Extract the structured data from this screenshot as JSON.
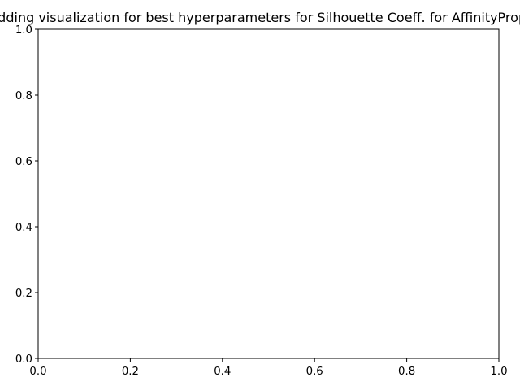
{
  "chart_data": {
    "type": "scatter",
    "title": "Embedding visualization for best hyperparameters for Silhouette Coeff. for AffinityPropagation",
    "xlabel": "",
    "ylabel": "",
    "xlim": [
      0.0,
      1.0
    ],
    "ylim": [
      0.0,
      1.0
    ],
    "x_ticks": [
      "0.0",
      "0.2",
      "0.4",
      "0.6",
      "0.8",
      "1.0"
    ],
    "y_ticks": [
      "0.0",
      "0.2",
      "0.4",
      "0.6",
      "0.8",
      "1.0"
    ],
    "series": [],
    "grid": false,
    "legend": "none"
  }
}
